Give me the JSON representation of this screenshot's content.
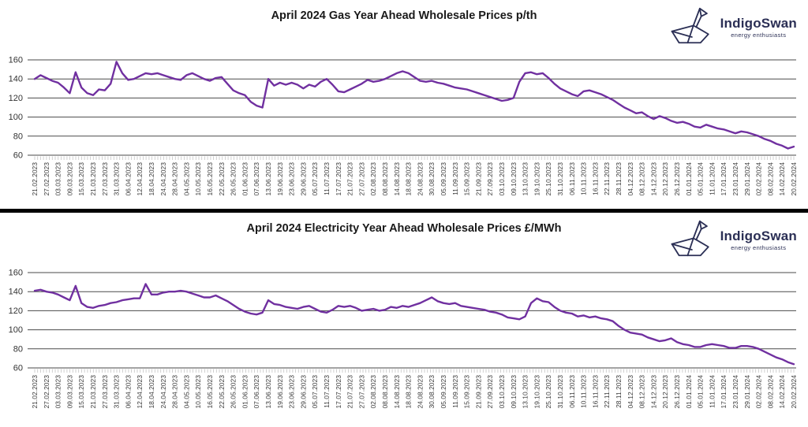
{
  "page": {
    "background": "#ffffff",
    "divider_color": "#000000",
    "border_color": "#cfcfcf"
  },
  "logo": {
    "name": "IndigoSwan",
    "tagline": "energy enthusiasts",
    "color": "#2b2f55",
    "icon": "origami-swan-icon"
  },
  "style": {
    "grid_color": "#4a4a4a",
    "minor_tick_color": "#c4c4c4",
    "axis_label_color": "#3a3a3a",
    "title_color": "#1a1a1a"
  },
  "chart_data": [
    {
      "type": "line",
      "title": "April 2024 Gas Year Ahead Wholesale Prices p/th",
      "unit": "p/th",
      "line_color": "#7030A0",
      "ylim": [
        60,
        160
      ],
      "y_ticks": [
        160,
        140,
        120,
        100,
        80,
        60
      ],
      "grid": true,
      "legend": "none",
      "points_per_label": 2,
      "x_tick_labels": [
        "21.02.2023",
        "27.02.2023",
        "03.03.2023",
        "09.03.2023",
        "15.03.2023",
        "21.03.2023",
        "27.03.2023",
        "31.03.2023",
        "06.04.2023",
        "12.04.2023",
        "18.04.2023",
        "24.04.2023",
        "28.04.2023",
        "04.05.2023",
        "10.05.2023",
        "16.05.2023",
        "22.05.2023",
        "26.05.2023",
        "01.06.2023",
        "07.06.2023",
        "13.06.2023",
        "19.06.2023",
        "23.06.2023",
        "29.06.2023",
        "05.07.2023",
        "11.07.2023",
        "17.07.2023",
        "21.07.2023",
        "27.07.2023",
        "02.08.2023",
        "08.08.2023",
        "14.08.2023",
        "18.08.2023",
        "24.08.2023",
        "30.08.2023",
        "05.09.2023",
        "11.09.2023",
        "15.09.2023",
        "21.09.2023",
        "27.09.2023",
        "03.10.2023",
        "09.10.2023",
        "13.10.2023",
        "19.10.2023",
        "25.10.2023",
        "31.10.2023",
        "06.11.2023",
        "10.11.2023",
        "16.11.2023",
        "22.11.2023",
        "28.11.2023",
        "04.12.2023",
        "08.12.2023",
        "14.12.2023",
        "20.12.2023",
        "26.12.2023",
        "01.01.2024",
        "05.01.2024",
        "11.01.2024",
        "17.01.2024",
        "23.01.2024",
        "29.01.2024",
        "02.02.2024",
        "08.02.2024",
        "14.02.2024",
        "20.02.2024"
      ],
      "values": [
        140,
        144,
        141,
        138,
        136,
        131,
        125,
        147,
        131,
        125,
        123,
        129,
        128,
        135,
        158,
        146,
        139,
        140,
        143,
        146,
        145,
        146,
        144,
        142,
        140,
        139,
        144,
        146,
        143,
        140,
        138,
        141,
        142,
        135,
        128,
        125,
        123,
        116,
        112,
        110,
        140,
        133,
        136,
        134,
        136,
        134,
        130,
        134,
        132,
        137,
        140,
        134,
        127,
        126,
        129,
        132,
        135,
        139,
        137,
        138,
        140,
        143,
        146,
        148,
        146,
        142,
        138,
        137,
        138,
        136,
        135,
        133,
        131,
        130,
        129,
        127,
        125,
        123,
        121,
        119,
        117,
        118,
        120,
        137,
        146,
        147,
        145,
        146,
        141,
        135,
        130,
        127,
        124,
        122,
        127,
        128,
        126,
        124,
        121,
        118,
        114,
        110,
        107,
        104,
        105,
        101,
        98,
        101,
        99,
        96,
        94,
        95,
        93,
        90,
        89,
        92,
        90,
        88,
        87,
        85,
        83,
        85,
        84,
        82,
        80,
        77,
        75,
        72,
        70,
        67,
        69
      ]
    },
    {
      "type": "line",
      "title": "April 2024 Electricity Year Ahead Wholesale Prices £/MWh",
      "unit": "£/MWh",
      "line_color": "#7030A0",
      "ylim": [
        60,
        160
      ],
      "y_ticks": [
        160,
        140,
        120,
        100,
        80,
        60
      ],
      "grid": true,
      "legend": "none",
      "points_per_label": 2,
      "x_tick_labels": [
        "21.02.2023",
        "27.02.2023",
        "03.03.2023",
        "09.03.2023",
        "15.03.2023",
        "21.03.2023",
        "27.03.2023",
        "31.03.2023",
        "06.04.2023",
        "12.04.2023",
        "18.04.2023",
        "24.04.2023",
        "28.04.2023",
        "04.05.2023",
        "10.05.2023",
        "16.05.2023",
        "22.05.2023",
        "26.05.2023",
        "01.06.2023",
        "07.06.2023",
        "13.06.2023",
        "19.06.2023",
        "23.06.2023",
        "29.06.2023",
        "05.07.2023",
        "11.07.2023",
        "17.07.2023",
        "21.07.2023",
        "27.07.2023",
        "02.08.2023",
        "08.08.2023",
        "14.08.2023",
        "18.08.2023",
        "24.08.2023",
        "30.08.2023",
        "05.09.2023",
        "11.09.2023",
        "15.09.2023",
        "21.09.2023",
        "27.09.2023",
        "03.10.2023",
        "09.10.2023",
        "13.10.2023",
        "19.10.2023",
        "25.10.2023",
        "31.10.2023",
        "06.11.2023",
        "10.11.2023",
        "16.11.2023",
        "22.11.2023",
        "28.11.2023",
        "04.12.2023",
        "08.12.2023",
        "14.12.2023",
        "20.12.2023",
        "26.12.2023",
        "01.01.2024",
        "05.01.2024",
        "11.01.2024",
        "17.01.2024",
        "23.01.2024",
        "29.01.2024",
        "02.02.2024",
        "08.02.2024",
        "14.02.2024",
        "20.02.2024"
      ],
      "values": [
        141,
        142,
        140,
        139,
        137,
        134,
        131,
        146,
        128,
        124,
        123,
        125,
        126,
        128,
        129,
        131,
        132,
        133,
        133,
        148,
        137,
        137,
        139,
        140,
        140,
        141,
        140,
        138,
        136,
        134,
        134,
        136,
        133,
        130,
        126,
        122,
        119,
        117,
        116,
        118,
        131,
        127,
        126,
        124,
        123,
        122,
        124,
        125,
        122,
        119,
        118,
        121,
        125,
        124,
        125,
        123,
        120,
        121,
        122,
        120,
        121,
        124,
        123,
        125,
        124,
        126,
        128,
        131,
        134,
        130,
        128,
        127,
        128,
        125,
        124,
        123,
        122,
        121,
        119,
        118,
        116,
        113,
        112,
        111,
        114,
        128,
        133,
        130,
        129,
        124,
        120,
        118,
        117,
        114,
        115,
        113,
        114,
        112,
        111,
        109,
        104,
        100,
        97,
        96,
        95,
        92,
        90,
        88,
        89,
        91,
        87,
        85,
        84,
        82,
        82,
        84,
        85,
        84,
        83,
        81,
        81,
        83,
        83,
        82,
        80,
        77,
        74,
        71,
        69,
        66,
        64
      ]
    }
  ]
}
